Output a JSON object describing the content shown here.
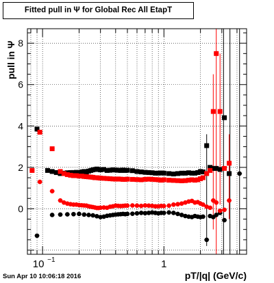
{
  "chart_data": {
    "type": "scatter",
    "title": "Fitted pull in Ψ  for Global Rec All EtapT",
    "xlabel": "pT/|q| (GeV/c)",
    "ylabel": "pull in  Ψ",
    "xscale": "log",
    "xlim": [
      0.075,
      4.8
    ],
    "ylim": [
      -2.2,
      8.7
    ],
    "x_tick_labels": [
      {
        "value": 0.1,
        "base": "10",
        "exp": "−1"
      },
      {
        "value": 1,
        "base": "1",
        "exp": ""
      }
    ],
    "y_tick_labels": [
      0,
      2,
      4,
      6,
      8
    ],
    "grid": true,
    "series": [
      {
        "color": "#000000",
        "marker": "square",
        "x": [
          0.09,
          0.11,
          0.12,
          0.13,
          0.14,
          0.15,
          0.16,
          0.17,
          0.18,
          0.19,
          0.2,
          0.21,
          0.22,
          0.23,
          0.24,
          0.25,
          0.26,
          0.27,
          0.28,
          0.29,
          0.3,
          0.32,
          0.34,
          0.36,
          0.38,
          0.4,
          0.42,
          0.44,
          0.46,
          0.48,
          0.5,
          0.55,
          0.6,
          0.65,
          0.7,
          0.75,
          0.8,
          0.85,
          0.9,
          0.95,
          1.0,
          1.1,
          1.2,
          1.3,
          1.4,
          1.5,
          1.6,
          1.7,
          1.8,
          1.9,
          2.0,
          2.1,
          2.25,
          2.4,
          2.55,
          2.7,
          2.9,
          3.15,
          3.45
        ],
        "y": [
          3.85,
          1.85,
          1.8,
          1.75,
          1.7,
          1.72,
          1.74,
          1.75,
          1.75,
          1.76,
          1.75,
          1.78,
          1.8,
          1.78,
          1.82,
          1.85,
          1.88,
          1.9,
          1.92,
          1.9,
          1.88,
          1.9,
          1.85,
          1.86,
          1.88,
          1.87,
          1.86,
          1.85,
          1.87,
          1.85,
          1.86,
          1.84,
          1.8,
          1.78,
          1.76,
          1.75,
          1.74,
          1.72,
          1.72,
          1.73,
          1.72,
          1.7,
          1.68,
          1.7,
          1.72,
          1.72,
          1.74,
          1.72,
          1.72,
          1.75,
          1.8,
          1.78,
          3.05,
          2.0,
          1.95,
          1.95,
          1.9,
          4.4,
          1.7
        ]
      },
      {
        "color": "#000000",
        "marker": "circle",
        "x": [
          0.09,
          0.12,
          0.14,
          0.16,
          0.18,
          0.2,
          0.22,
          0.24,
          0.26,
          0.28,
          0.3,
          0.32,
          0.34,
          0.36,
          0.38,
          0.4,
          0.42,
          0.44,
          0.46,
          0.48,
          0.5,
          0.55,
          0.6,
          0.65,
          0.7,
          0.75,
          0.8,
          0.85,
          0.9,
          0.95,
          1.0,
          1.1,
          1.2,
          1.3,
          1.4,
          1.5,
          1.6,
          1.7,
          1.8,
          1.9,
          2.0,
          2.1,
          2.25,
          2.4,
          2.55,
          2.7,
          2.9,
          3.15,
          3.45,
          4.2
        ],
        "y": [
          -1.3,
          -0.3,
          -0.28,
          -0.27,
          -0.26,
          -0.25,
          -0.28,
          -0.3,
          -0.32,
          -0.36,
          -0.4,
          -0.38,
          -0.34,
          -0.32,
          -0.3,
          -0.28,
          -0.27,
          -0.26,
          -0.25,
          -0.26,
          -0.25,
          -0.24,
          -0.22,
          -0.2,
          -0.21,
          -0.2,
          -0.18,
          -0.2,
          -0.22,
          -0.2,
          -0.2,
          -0.18,
          -0.2,
          -0.25,
          -0.3,
          -0.35,
          -0.38,
          -0.4,
          -0.35,
          -0.38,
          -0.4,
          -0.38,
          -1.5,
          -0.35,
          -0.4,
          -0.3,
          -0.2,
          -0.55,
          1.7,
          1.7
        ]
      },
      {
        "color": "#ff0000",
        "marker": "square",
        "x": [
          0.082,
          0.095,
          0.12,
          0.14,
          0.15,
          0.16,
          0.17,
          0.18,
          0.19,
          0.2,
          0.21,
          0.22,
          0.23,
          0.24,
          0.25,
          0.26,
          0.27,
          0.28,
          0.29,
          0.3,
          0.32,
          0.34,
          0.36,
          0.38,
          0.4,
          0.42,
          0.44,
          0.46,
          0.48,
          0.5,
          0.55,
          0.6,
          0.65,
          0.7,
          0.75,
          0.8,
          0.85,
          0.9,
          0.95,
          1.0,
          1.1,
          1.2,
          1.3,
          1.4,
          1.5,
          1.6,
          1.7,
          1.8,
          1.9,
          2.0,
          2.1,
          2.25,
          2.4,
          2.55,
          2.7,
          2.9,
          3.15,
          3.45
        ],
        "y": [
          1.85,
          3.7,
          2.9,
          1.8,
          1.7,
          1.65,
          1.62,
          1.6,
          1.6,
          1.58,
          1.58,
          1.56,
          1.55,
          1.54,
          1.53,
          1.52,
          1.5,
          1.5,
          1.49,
          1.48,
          1.47,
          1.46,
          1.45,
          1.44,
          1.43,
          1.44,
          1.43,
          1.42,
          1.42,
          1.43,
          1.42,
          1.41,
          1.4,
          1.42,
          1.43,
          1.42,
          1.41,
          1.4,
          1.38,
          1.4,
          1.38,
          1.37,
          1.36,
          1.35,
          1.36,
          1.38,
          1.4,
          1.38,
          1.4,
          1.45,
          1.5,
          1.7,
          1.85,
          4.7,
          7.5,
          4.7,
          1.95,
          2.2
        ]
      },
      {
        "color": "#ff0000",
        "marker": "circle",
        "x": [
          0.095,
          0.12,
          0.14,
          0.15,
          0.16,
          0.17,
          0.18,
          0.19,
          0.2,
          0.21,
          0.22,
          0.23,
          0.24,
          0.25,
          0.26,
          0.27,
          0.28,
          0.29,
          0.3,
          0.32,
          0.34,
          0.36,
          0.38,
          0.4,
          0.42,
          0.44,
          0.46,
          0.48,
          0.5,
          0.55,
          0.6,
          0.65,
          0.7,
          0.75,
          0.8,
          0.85,
          0.9,
          0.95,
          1.0,
          1.1,
          1.2,
          1.3,
          1.4,
          1.5,
          1.6,
          1.7,
          1.8,
          1.9,
          2.0,
          2.1,
          2.25,
          2.4,
          2.55,
          2.7,
          2.9,
          3.15,
          3.45
        ],
        "y": [
          1.3,
          0.85,
          0.4,
          0.3,
          0.25,
          0.22,
          0.2,
          0.2,
          0.18,
          0.17,
          0.16,
          0.15,
          0.12,
          0.1,
          0.08,
          0.06,
          0.04,
          0.04,
          0.05,
          0.06,
          0.05,
          0.1,
          0.12,
          0.15,
          0.14,
          0.13,
          0.14,
          0.15,
          0.15,
          0.16,
          0.15,
          0.14,
          0.16,
          0.15,
          0.14,
          0.12,
          0.12,
          0.14,
          0.13,
          0.15,
          0.2,
          0.22,
          0.25,
          0.3,
          0.35,
          0.38,
          0.3,
          0.32,
          0.25,
          0.2,
          0.1,
          0.05,
          0.4,
          0.3,
          -0.1,
          -0.05,
          0.4
        ]
      }
    ],
    "error_bars": [
      {
        "color": "#000000",
        "x": 3.1,
        "low": -2.2,
        "high": 8.7
      },
      {
        "color": "#000000",
        "x": 3.5,
        "low": -2.2,
        "high": 8.7
      },
      {
        "color": "#000000",
        "x": 4.2,
        "low": -2.2,
        "high": 8.7
      },
      {
        "color": "#000000",
        "x": 2.25,
        "low": -1.8,
        "high": 3.6
      },
      {
        "color": "#ff0000",
        "x": 2.55,
        "low": -1.0,
        "high": 6.5
      },
      {
        "color": "#ff0000",
        "x": 2.7,
        "low": -2.2,
        "high": 8.7
      },
      {
        "color": "#ff0000",
        "x": 2.9,
        "low": 0.2,
        "high": 7.5
      },
      {
        "color": "#ff0000",
        "x": 3.45,
        "low": -0.5,
        "high": 3.6
      }
    ],
    "footer": "Sun Apr 10 10:06:18 2016"
  }
}
